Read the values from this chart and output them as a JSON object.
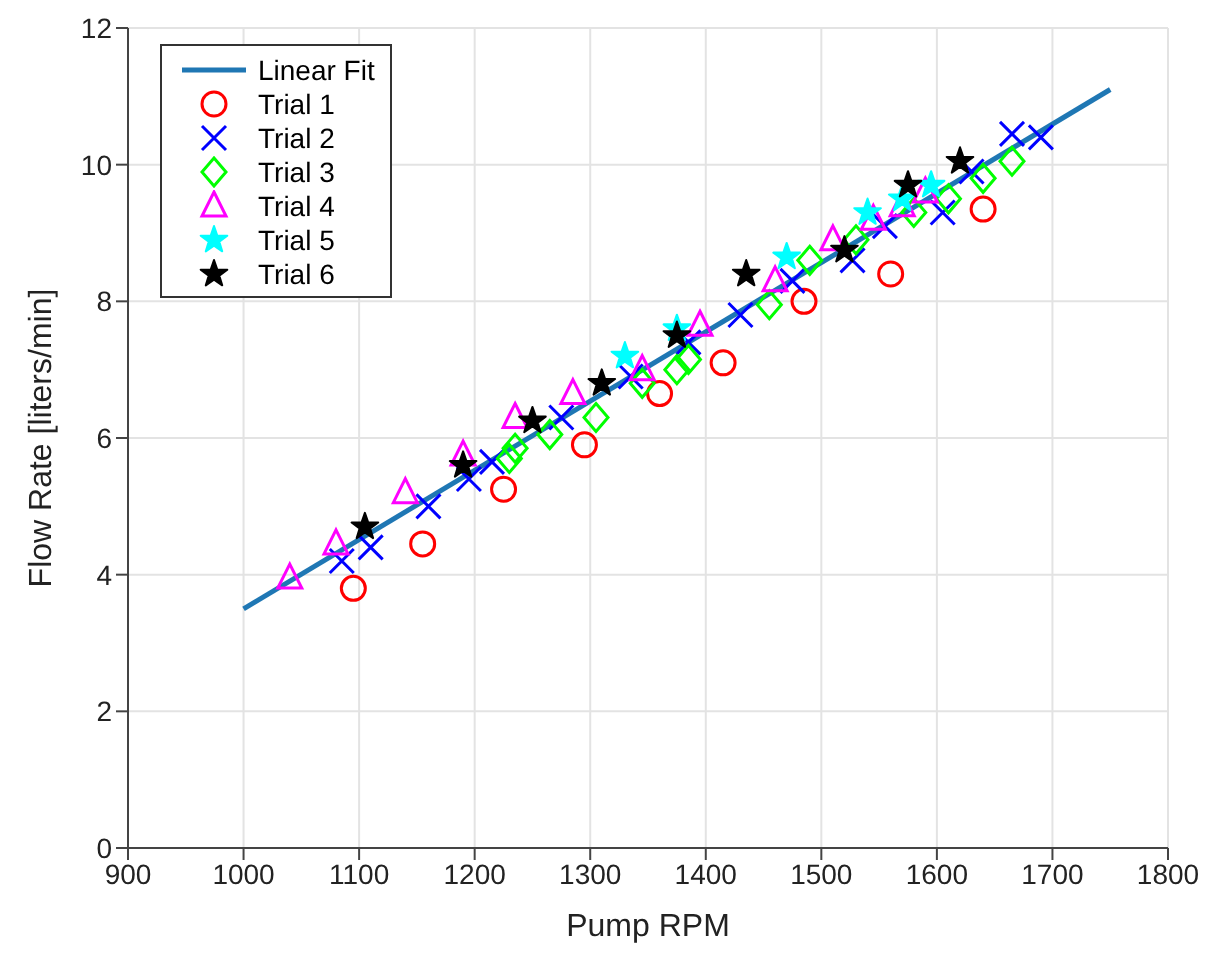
{
  "chart_data": {
    "type": "scatter",
    "xlabel": "Pump RPM",
    "ylabel": "Flow Rate [liters/min]",
    "xlim": [
      900,
      1800
    ],
    "xticks": [
      900,
      1000,
      1100,
      1200,
      1300,
      1400,
      1500,
      1600,
      1700,
      1800
    ],
    "ylim": [
      0,
      12
    ],
    "yticks": [
      0,
      2,
      4,
      6,
      8,
      10,
      12
    ],
    "grid": true,
    "legend": "top left",
    "series": [
      {
        "name": "Linear Fit",
        "type": "line",
        "color": "#1f77b4",
        "marker": "none",
        "line_style": "solid",
        "x": [
          1000,
          1750
        ],
        "values": [
          3.5,
          11.1
        ]
      },
      {
        "name": "Trial 1",
        "color": "#ff0000",
        "marker": "circle",
        "x": [
          1095,
          1155,
          1225,
          1295,
          1360,
          1415,
          1485,
          1560,
          1640
        ],
        "values": [
          3.8,
          4.45,
          5.25,
          5.9,
          6.65,
          7.1,
          8.0,
          8.4,
          9.35
        ]
      },
      {
        "name": "Trial 2",
        "color": "#0000ff",
        "marker": "cross",
        "x": [
          1085,
          1110,
          1160,
          1195,
          1215,
          1275,
          1335,
          1385,
          1430,
          1475,
          1527,
          1555,
          1605,
          1630,
          1665,
          1690
        ],
        "values": [
          4.2,
          4.4,
          5.0,
          5.4,
          5.65,
          6.3,
          6.9,
          7.4,
          7.8,
          8.3,
          8.6,
          9.1,
          9.3,
          9.9,
          10.45,
          10.4
        ]
      },
      {
        "name": "Trial 3",
        "color": "#00ff00",
        "marker": "diamond",
        "x": [
          1230,
          1235,
          1265,
          1305,
          1345,
          1375,
          1385,
          1455,
          1490,
          1530,
          1580,
          1610,
          1640,
          1665
        ],
        "values": [
          5.7,
          5.85,
          6.05,
          6.3,
          6.8,
          7.0,
          7.15,
          7.95,
          8.6,
          8.9,
          9.3,
          9.5,
          9.8,
          10.05
        ]
      },
      {
        "name": "Trial 4",
        "color": "#ff00ff",
        "marker": "triangle",
        "x": [
          1040,
          1080,
          1140,
          1190,
          1235,
          1285,
          1345,
          1395,
          1460,
          1510,
          1545,
          1570,
          1590
        ],
        "values": [
          3.95,
          4.45,
          5.2,
          5.75,
          6.3,
          6.65,
          7.0,
          7.65,
          8.3,
          8.9,
          9.2,
          9.4,
          9.6
        ]
      },
      {
        "name": "Trial 5",
        "color": "#00ffff",
        "marker": "star",
        "x": [
          1330,
          1375,
          1470,
          1540,
          1570,
          1595
        ],
        "values": [
          7.2,
          7.6,
          8.65,
          9.3,
          9.5,
          9.7
        ]
      },
      {
        "name": "Trial 6",
        "color": "#000000",
        "marker": "star",
        "x": [
          1105,
          1190,
          1250,
          1310,
          1375,
          1435,
          1520,
          1575,
          1620
        ],
        "values": [
          4.7,
          5.6,
          6.25,
          6.8,
          7.5,
          8.4,
          8.75,
          9.7,
          10.05
        ]
      }
    ]
  }
}
